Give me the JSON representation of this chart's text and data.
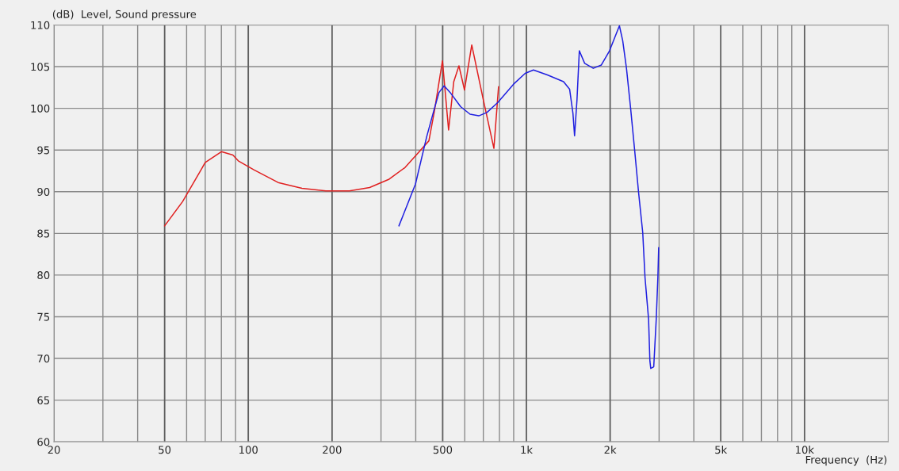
{
  "chart_data": {
    "type": "line",
    "ylabel": "(dB)  Level, Sound pressure",
    "xlabel": "Frequency  (Hz)",
    "log": "x",
    "grid": true,
    "legend": false,
    "xlim": [
      20,
      20000
    ],
    "ylim": [
      60,
      110
    ],
    "xticks": [
      20,
      {
        "value": 30,
        "label": null
      },
      {
        "value": 40,
        "label": null
      },
      50,
      {
        "value": 60,
        "label": null
      },
      {
        "value": 70,
        "label": null
      },
      {
        "value": 80,
        "label": null
      },
      {
        "value": 90,
        "label": null
      },
      100,
      200,
      {
        "value": 300,
        "label": null
      },
      {
        "value": 400,
        "label": null
      },
      500,
      {
        "value": 600,
        "label": null
      },
      {
        "value": 700,
        "label": null
      },
      {
        "value": 800,
        "label": null
      },
      {
        "value": 900,
        "label": null
      },
      {
        "value": 1000,
        "label": "1k"
      },
      {
        "value": 2000,
        "label": "2k"
      },
      {
        "value": 3000,
        "label": null
      },
      {
        "value": 4000,
        "label": null
      },
      {
        "value": 5000,
        "label": "5k"
      },
      {
        "value": 6000,
        "label": null
      },
      {
        "value": 7000,
        "label": null
      },
      {
        "value": 8000,
        "label": null
      },
      {
        "value": 9000,
        "label": null
      },
      {
        "value": 10000,
        "label": "10k"
      }
    ],
    "yticks": [
      60,
      65,
      70,
      75,
      80,
      85,
      90,
      95,
      100,
      105,
      110
    ],
    "series": [
      {
        "color": "#e02020",
        "x": [
          50,
          58,
          70,
          80,
          88,
          92,
          105,
          128,
          156,
          190,
          231,
          273,
          321,
          366,
          404,
          446,
          467,
          499,
          525,
          548,
          572,
          599,
          636,
          697,
          764,
          794
        ],
        "values": [
          85.9,
          88.8,
          93.5,
          94.8,
          94.4,
          93.7,
          92.6,
          91.1,
          90.4,
          90.1,
          90.1,
          90.5,
          91.5,
          92.9,
          94.5,
          96.1,
          99.7,
          105.7,
          97.4,
          103.2,
          105.1,
          102.2,
          107.6,
          101.3,
          95.2,
          102.6
        ]
      },
      {
        "color": "#2020e0",
        "x": [
          348,
          399,
          438,
          467,
          485,
          506,
          532,
          580,
          627,
          674,
          721,
          789,
          899,
          990,
          1060,
          1190,
          1360,
          1430,
          1470,
          1490,
          1520,
          1550,
          1620,
          1740,
          1860,
          1990,
          2160,
          2220,
          2290,
          2370,
          2450,
          2530,
          2620,
          2670,
          2750,
          2780,
          2800,
          2870,
          2930,
          2970,
          2990
        ],
        "values": [
          85.9,
          90.9,
          96.6,
          100,
          101.9,
          102.7,
          101.9,
          100.2,
          99.3,
          99.1,
          99.5,
          100.7,
          102.9,
          104.2,
          104.6,
          104,
          103.2,
          102.3,
          99.4,
          96.7,
          101,
          106.9,
          105.4,
          104.8,
          105.2,
          106.9,
          109.9,
          108.1,
          104.8,
          100,
          95,
          90,
          85.1,
          79.7,
          74.7,
          69.7,
          68.8,
          69,
          74.7,
          79.7,
          83.3
        ]
      }
    ]
  }
}
